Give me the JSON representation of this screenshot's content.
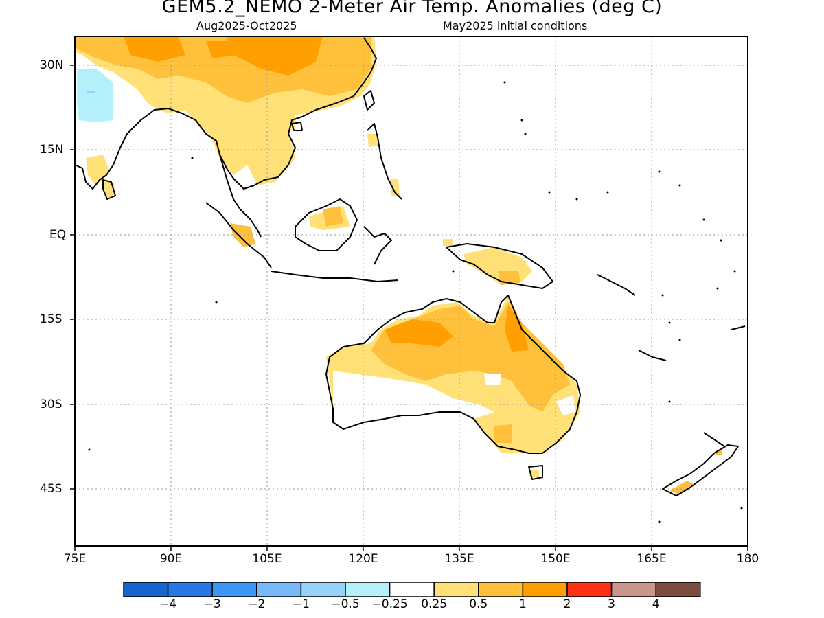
{
  "title": "GEM5.2_NEMO 2-Meter Air Temp. Anomalies (deg C)",
  "subtitle_left": "Aug2025-Oct2025",
  "subtitle_right": "May2025 initial conditions",
  "lat_labels": [
    "30N",
    "15N",
    "EQ",
    "15S",
    "30S",
    "45S"
  ],
  "lon_labels": [
    "75E",
    "90E",
    "105E",
    "120E",
    "135E",
    "150E",
    "165E",
    "180"
  ],
  "colorbar": {
    "colors": [
      "#1864cd",
      "#2678e6",
      "#3c96f5",
      "#78b9fa",
      "#96d2fa",
      "#b4f0fa",
      "#ffffff",
      "#ffe178",
      "#ffc03c",
      "#ffa000",
      "#ff3214",
      "#c8968c",
      "#7d4c41"
    ],
    "labels": [
      "-4",
      "-3",
      "-2",
      "-1",
      "-0.5",
      "-0.25",
      "0.25",
      "0.5",
      "1",
      "2",
      "3",
      "4"
    ]
  },
  "anomaly_colors": {
    "light_blue": "#b4f0fa",
    "blue": "#96d2fa",
    "light_yellow": "#ffe178",
    "orange_light": "#ffc03c",
    "orange": "#ffa000"
  }
}
